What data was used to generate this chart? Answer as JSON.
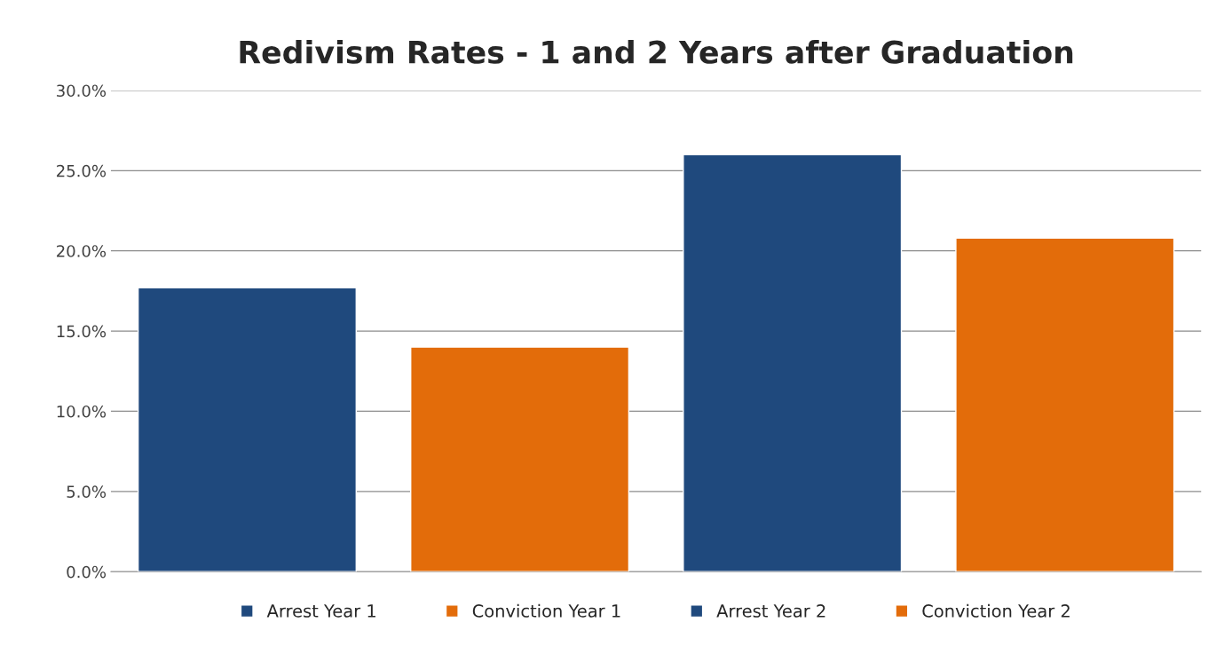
{
  "chart_data": {
    "type": "bar",
    "title": "Redivism Rates - 1 and 2 Years after Graduation",
    "categories": [
      null,
      null,
      null,
      null
    ],
    "series": [
      {
        "name": "Arrest Year 1",
        "color": "#1f497d",
        "values": [
          17.7,
          null,
          null,
          null
        ]
      },
      {
        "name": "Conviction Year 1",
        "color": "#e36c0a",
        "values": [
          null,
          14.0,
          null,
          null
        ]
      },
      {
        "name": "Arrest Year 2",
        "color": "#1f497d",
        "values": [
          null,
          null,
          26.0,
          null
        ]
      },
      {
        "name": "Conviction Year 2",
        "color": "#e36c0a",
        "values": [
          null,
          null,
          null,
          20.8
        ]
      }
    ],
    "ylim": [
      0,
      30
    ],
    "yticks": [
      {
        "value": 0,
        "label": "0.0%"
      },
      {
        "value": 5,
        "label": "5.0%"
      },
      {
        "value": 10,
        "label": "10.0%"
      },
      {
        "value": 15,
        "label": "15.0%"
      },
      {
        "value": 20,
        "label": "20.0%"
      },
      {
        "value": 25,
        "label": "25.0%"
      },
      {
        "value": 30,
        "label": "30.0%"
      }
    ],
    "grid": "y",
    "legend": "bottom"
  }
}
